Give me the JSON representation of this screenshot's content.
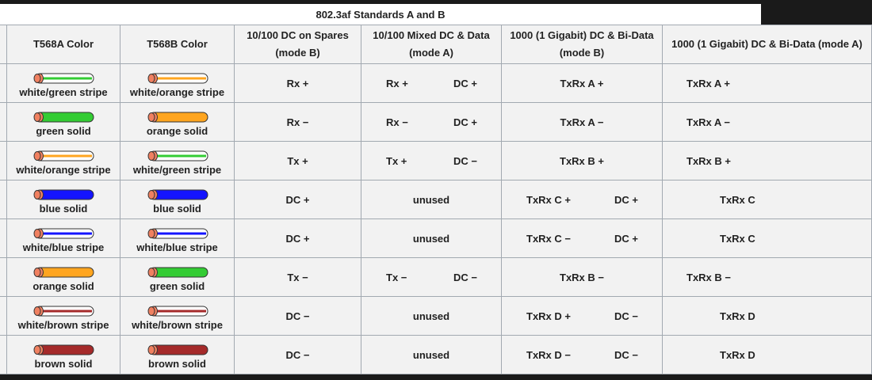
{
  "caption": "802.3af Standards A and B",
  "headers": [
    "",
    "T568A Color",
    "T568B Color",
    "10/100 DC on Spares (mode B)",
    "10/100 Mixed DC & Data (mode A)",
    "1000 (1 Gigabit) DC & Bi-Data (mode B)",
    "1000 (1 Gigabit) DC & Bi-Data (mode A)"
  ],
  "wire_colors": {
    "green": "#33cc33",
    "orange": "#ffa51f",
    "blue": "#1414ff",
    "brown": "#a52a2a",
    "white": "#ffffff",
    "tip": "#f08060"
  },
  "rows": [
    {
      "a": {
        "label": "white/green stripe",
        "color": "green",
        "stripe": true
      },
      "b": {
        "label": "white/orange stripe",
        "color": "orange",
        "stripe": true
      },
      "spares": [
        "Rx +"
      ],
      "mixed": [
        "Rx +",
        "DC +"
      ],
      "gigB": [
        "TxRx A +"
      ],
      "gigA": [
        "TxRx A +"
      ],
      "gigAFar": false
    },
    {
      "a": {
        "label": "green solid",
        "color": "green",
        "stripe": false
      },
      "b": {
        "label": "orange solid",
        "color": "orange",
        "stripe": false
      },
      "spares": [
        "Rx −"
      ],
      "mixed": [
        "Rx −",
        "DC +"
      ],
      "gigB": [
        "TxRx A −"
      ],
      "gigA": [
        "TxRx A −"
      ],
      "gigAFar": false
    },
    {
      "a": {
        "label": "white/orange stripe",
        "color": "orange",
        "stripe": true
      },
      "b": {
        "label": "white/green stripe",
        "color": "green",
        "stripe": true
      },
      "spares": [
        "Tx +"
      ],
      "mixed": [
        "Tx +",
        "DC −"
      ],
      "gigB": [
        "TxRx B +"
      ],
      "gigA": [
        "TxRx B +"
      ],
      "gigAFar": false
    },
    {
      "a": {
        "label": "blue solid",
        "color": "blue",
        "stripe": false
      },
      "b": {
        "label": "blue solid",
        "color": "blue",
        "stripe": false
      },
      "spares": [
        "DC +"
      ],
      "mixed": [
        "unused"
      ],
      "gigB": [
        "TxRx C +",
        "DC +"
      ],
      "gigA": [
        "TxRx C"
      ],
      "gigAFar": true
    },
    {
      "a": {
        "label": "white/blue stripe",
        "color": "blue",
        "stripe": true
      },
      "b": {
        "label": "white/blue stripe",
        "color": "blue",
        "stripe": true
      },
      "spares": [
        "DC +"
      ],
      "mixed": [
        "unused"
      ],
      "gigB": [
        "TxRx C −",
        "DC +"
      ],
      "gigA": [
        "TxRx C"
      ],
      "gigAFar": true
    },
    {
      "a": {
        "label": "orange solid",
        "color": "orange",
        "stripe": false
      },
      "b": {
        "label": "green solid",
        "color": "green",
        "stripe": false
      },
      "spares": [
        "Tx −"
      ],
      "mixed": [
        "Tx −",
        "DC −"
      ],
      "gigB": [
        "TxRx B −"
      ],
      "gigA": [
        "TxRx B −"
      ],
      "gigAFar": false
    },
    {
      "a": {
        "label": "white/brown stripe",
        "color": "brown",
        "stripe": true
      },
      "b": {
        "label": "white/brown stripe",
        "color": "brown",
        "stripe": true
      },
      "spares": [
        "DC −"
      ],
      "mixed": [
        "unused"
      ],
      "gigB": [
        "TxRx D +",
        "DC −"
      ],
      "gigA": [
        "TxRx D"
      ],
      "gigAFar": true
    },
    {
      "a": {
        "label": "brown solid",
        "color": "brown",
        "stripe": false
      },
      "b": {
        "label": "brown solid",
        "color": "brown",
        "stripe": false
      },
      "spares": [
        "DC −"
      ],
      "mixed": [
        "unused"
      ],
      "gigB": [
        "TxRx D −",
        "DC −"
      ],
      "gigA": [
        "TxRx D"
      ],
      "gigAFar": true
    }
  ]
}
